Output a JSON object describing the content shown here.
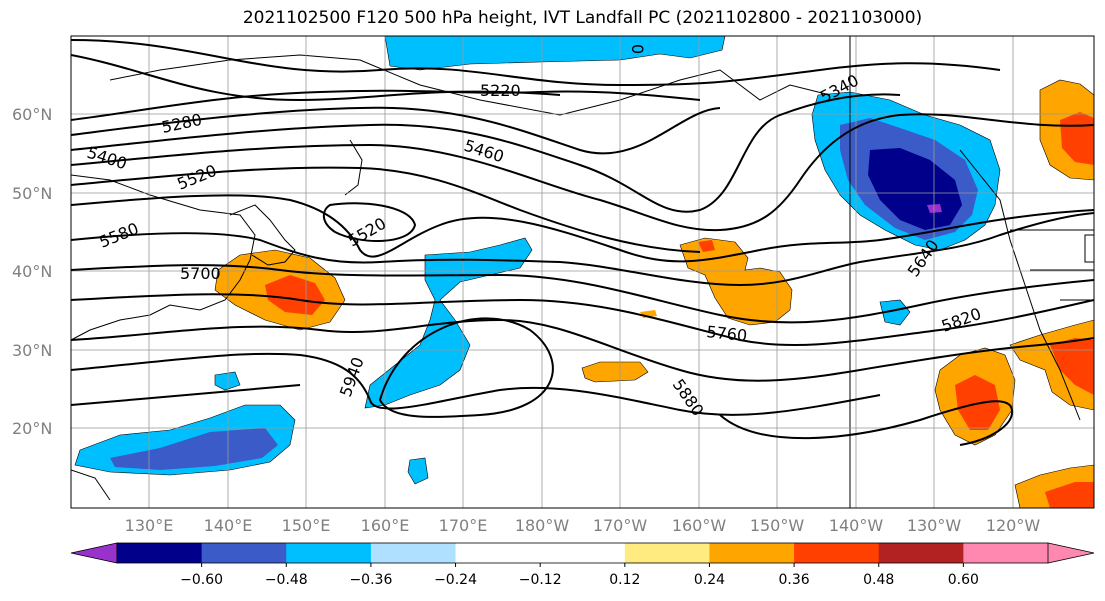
{
  "title": "2021102500 F120 500 hPa height, IVT Landfall PC (2021102800 - 2021103000)",
  "lat_labels": [
    "60°N",
    "50°N",
    "40°N",
    "30°N",
    "20°N"
  ],
  "lon_labels": [
    "130°E",
    "140°E",
    "150°E",
    "160°E",
    "170°E",
    "180°W",
    "170°W",
    "160°W",
    "150°W",
    "140°W",
    "130°W",
    "120°W"
  ],
  "contour_labels": [
    "5220",
    "5280",
    "5400",
    "5460",
    "5520",
    "5520",
    "5580",
    "5700",
    "5340",
    "5640",
    "5760",
    "5820",
    "5880",
    "5940",
    "0"
  ],
  "colorbar": {
    "colors": [
      "#9932CC",
      "#00008B",
      "#3A5BC8",
      "#00BFFF",
      "#B0E0FF",
      "#FFFFFF",
      "#FFFFFF",
      "#FFEB80",
      "#FFA500",
      "#FF4000",
      "#B22222",
      "#FF88B0"
    ],
    "tick_labels": [
      "−0.60",
      "−0.48",
      "−0.36",
      "−0.24",
      "−0.12",
      "0.12",
      "0.24",
      "0.36",
      "0.48",
      "0.60"
    ],
    "extend_low_color": "#9932CC",
    "extend_high_color": "#FF88B0"
  },
  "colors": {
    "neg_dark": "#00008B",
    "neg_mid": "#3A5BC8",
    "neg_light": "#00BFFF",
    "neg_pale": "#B0E0FF",
    "pos_pale": "#FFEB80",
    "pos_mid": "#FFA500",
    "pos_strong": "#FF4000",
    "neg_extreme": "#9932CC",
    "grid": "#999999"
  }
}
